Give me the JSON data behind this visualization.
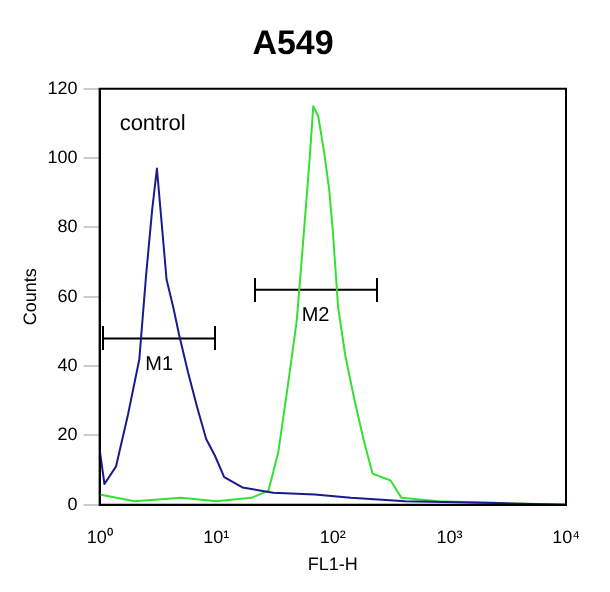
{
  "chart_data": {
    "type": "line",
    "title": "A549",
    "xlabel": "FL1-H",
    "ylabel": "Counts",
    "log": "x",
    "grid": false,
    "legend": false,
    "marker": "none",
    "xlim": [
      1,
      10000
    ],
    "xticks": [
      {
        "value": 1,
        "label": "10⁰"
      },
      {
        "value": 10,
        "label": "10¹"
      },
      {
        "value": 100,
        "label": "10²"
      },
      {
        "value": 1000,
        "label": "10³"
      },
      {
        "value": 10000,
        "label": "10⁴"
      }
    ],
    "ylim": [
      0,
      120
    ],
    "yticks": [
      0,
      20,
      40,
      60,
      80,
      100,
      120
    ],
    "annotations": [
      "control"
    ],
    "series": [
      {
        "color": "#1a1a8c",
        "x": [
          1,
          1.1,
          1.38,
          1.75,
          2.19,
          2.5,
          2.82,
          3.1,
          3.37,
          3.75,
          4.28,
          4.81,
          5.75,
          6.88,
          8.2,
          9.8,
          11.7,
          16.8,
          30.8,
          70,
          143,
          417,
          2480,
          10000
        ],
        "values": [
          16,
          6,
          11,
          26,
          42,
          66,
          85,
          97,
          83,
          65,
          57,
          49,
          38,
          28,
          19,
          14,
          8,
          5,
          3.5,
          3,
          2,
          1,
          0.5,
          0
        ]
      },
      {
        "color": "#33e033",
        "x": [
          1,
          2,
          5,
          10,
          20,
          28,
          34,
          41,
          49,
          54.5,
          63,
          68,
          75,
          84,
          93,
          100,
          111,
          128,
          154,
          183,
          219,
          313,
          388,
          800,
          10000
        ],
        "values": [
          3,
          1,
          2,
          1,
          2,
          4,
          15,
          34,
          53,
          72,
          99,
          115,
          112,
          102,
          91,
          79,
          57,
          43,
          30,
          19,
          9,
          7,
          2,
          1,
          0
        ]
      },
      {
        "name": "M1",
        "color": "#000000",
        "x": [
          1.07,
          9.8
        ],
        "values": [
          48,
          48
        ]
      },
      {
        "name": "M2",
        "color": "#000000",
        "x": [
          21.5,
          235
        ],
        "values": [
          62,
          62
        ]
      }
    ]
  }
}
